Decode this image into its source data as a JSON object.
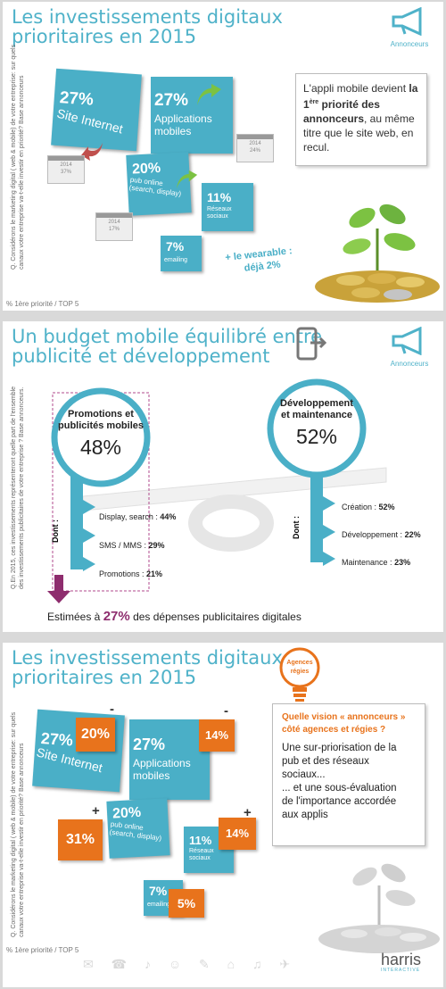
{
  "panel1": {
    "title_l1": "Les investissements digitaux",
    "title_l2": "prioritaires en 2015",
    "megaphone_label": "Annonceurs",
    "side_note": "Q. Considérons le marketing digital ( web & mobile) de votre entreprise: sur quels canaux votre entreprise va-t-elle investir en priorité? Base annonceurs",
    "footnote": "% 1ère priorité / TOP 5",
    "tiles": {
      "site": {
        "pct": "27%",
        "label": "Site Internet"
      },
      "apps": {
        "pct": "27%",
        "label_l1": "Applications",
        "label_l2": "mobiles"
      },
      "pub": {
        "pct": "20%",
        "label_l1": "pub online",
        "label_l2": "(search, display)"
      },
      "social": {
        "pct": "11%",
        "label_l1": "Réseaux",
        "label_l2": "sociaux"
      },
      "email": {
        "pct": "7%",
        "label": "emailing"
      }
    },
    "cal_site": {
      "year": "2014",
      "val": "37%"
    },
    "cal_apps": {
      "year": "2014",
      "val": "24%"
    },
    "cal_pub": {
      "year": "2014",
      "val": "17%"
    },
    "wearable_l1": "+ le wearable :",
    "wearable_l2": "déjà 2%",
    "callout_pre": "L'appli mobile devient ",
    "callout_bold1": "la 1",
    "callout_sup": "ère",
    "callout_bold2": " priorité des annonceurs",
    "callout_post": ", au même titre que le site web, en recul."
  },
  "panel2": {
    "title_l1": "Un budget mobile équilibré entre",
    "title_l2": "publicité et développement",
    "megaphone_label": "Annonceurs",
    "side_note": "Q.En 2015, ces investissements représenteront quelle part de l'ensemble des investissements publicitaires de votre entreprise ? Base annonceurs.",
    "left_head_l1": "Promotions et",
    "left_head_l2": "publicités mobiles",
    "left_pct": "48%",
    "right_head_l1": "Développement",
    "right_head_l2": "et maintenance",
    "right_pct": "52%",
    "dont": "Dont :",
    "left_items": [
      {
        "label": "Display, search :",
        "val": "44%"
      },
      {
        "label": "SMS / MMS :",
        "val": "29%"
      },
      {
        "label": "Promotions :",
        "val": "21%"
      }
    ],
    "right_items": [
      {
        "label": "Création :",
        "val": "52%"
      },
      {
        "label": "Développement :",
        "val": "22%"
      },
      {
        "label": "Maintenance :",
        "val": "23%"
      }
    ],
    "estimate_pre": "Estimées à ",
    "estimate_pct": "27%",
    "estimate_post": " des dépenses publicitaires digitales"
  },
  "panel3": {
    "title_l1": "Les investissements digitaux",
    "title_l2": "prioritaires en 2015",
    "bulb_l1": "Agences",
    "bulb_l2": "régies",
    "side_note": "Q. Considérons le marketing digital ( web & mobile) de votre entreprise: sur quels canaux votre entreprise va-t-elle investir en priorité? Base annonceurs",
    "footnote": "% 1ère priorité / TOP 5",
    "tiles": {
      "site": {
        "pct": "27%",
        "label": "Site Internet",
        "agency": "20%",
        "sign": "-"
      },
      "apps": {
        "pct": "27%",
        "label_l1": "Applications",
        "label_l2": "mobiles",
        "agency": "14%",
        "sign": "-"
      },
      "pub": {
        "pct": "20%",
        "label_l1": "pub online",
        "label_l2": "(search, display)",
        "agency": "31%",
        "sign": "+"
      },
      "social": {
        "pct": "11%",
        "label_l1": "Réseaux",
        "label_l2": "sociaux",
        "agency": "14%",
        "sign": "+"
      },
      "email": {
        "pct": "7%",
        "label": "emailing",
        "agency": "5%"
      }
    },
    "q_l1": "Quelle vision « annonceurs »",
    "q_l2": "côté agences et régies ?",
    "a1_l1": "Une sur-priorisation de la",
    "a1_l2": "pub et des réseaux",
    "a1_l3": "sociaux...",
    "a2_l1": "... et une sous-évaluation",
    "a2_l2": "de l'importance accordée",
    "a2_l3": "aux applis",
    "logo_name": "harris",
    "logo_sub": "INTERACTIVE"
  },
  "colors": {
    "teal": "#4aafc7",
    "orange": "#e8731c",
    "purple": "#8e2d6e",
    "green": "#7cc242"
  }
}
